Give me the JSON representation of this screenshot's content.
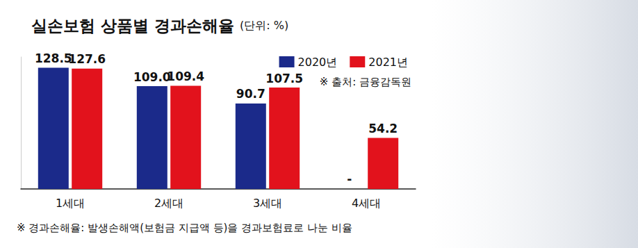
{
  "chart_data": {
    "type": "bar",
    "title": "실손보험 상품별 경과손해율",
    "subtitle": "(단위: %)",
    "categories": [
      "1세대",
      "2세대",
      "3세대",
      "4세대"
    ],
    "series": [
      {
        "name": "2020년",
        "color": "#1b2a8a",
        "values": [
          128.5,
          109.0,
          90.7,
          null
        ],
        "value_labels": [
          "128.5",
          "109.0",
          "90.7",
          "-"
        ]
      },
      {
        "name": "2021년",
        "color": "#e2121c",
        "values": [
          127.6,
          109.4,
          107.5,
          54.2
        ],
        "value_labels": [
          "127.6",
          "109.4",
          "107.5",
          "54.2"
        ]
      }
    ],
    "ylim": [
      0,
      140
    ],
    "grid": false,
    "tick_labels": "x",
    "data_labels": true,
    "legend": "top-right",
    "annotations": [
      "※ 출처: 금융감독원",
      "※ 경과손해율: 발생손해액(보험금 지급액 등)을 경과보험료로 나눈 비율"
    ]
  }
}
